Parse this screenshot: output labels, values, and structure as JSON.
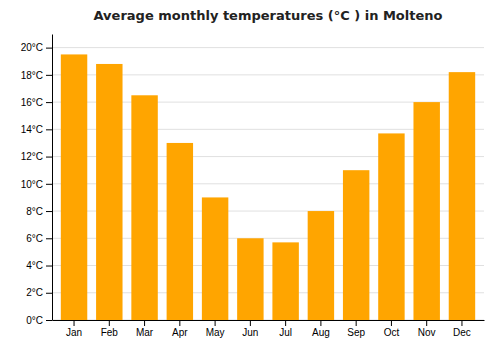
{
  "chart_data": {
    "type": "bar",
    "title": "Average monthly temperatures (°C ) in Molteno",
    "categories": [
      "Jan",
      "Feb",
      "Mar",
      "Apr",
      "May",
      "Jun",
      "Jul",
      "Aug",
      "Sep",
      "Oct",
      "Nov",
      "Dec"
    ],
    "values": [
      19.5,
      18.8,
      16.5,
      13.0,
      9.0,
      6.0,
      5.7,
      8.0,
      11.0,
      13.7,
      16.0,
      18.2
    ],
    "color": "#FFA500",
    "ylim": [
      0,
      21
    ],
    "yticks": [
      {
        "value": 0,
        "label": "0°C"
      },
      {
        "value": 2,
        "label": "2°C"
      },
      {
        "value": 4,
        "label": "4°C"
      },
      {
        "value": 6,
        "label": "6°C"
      },
      {
        "value": 8,
        "label": "8°C"
      },
      {
        "value": 10,
        "label": "10°C"
      },
      {
        "value": 12,
        "label": "12°C"
      },
      {
        "value": 14,
        "label": "14°C"
      },
      {
        "value": 16,
        "label": "16°C"
      },
      {
        "value": 18,
        "label": "18°C"
      },
      {
        "value": 20,
        "label": "20°C"
      }
    ],
    "grid": true
  }
}
